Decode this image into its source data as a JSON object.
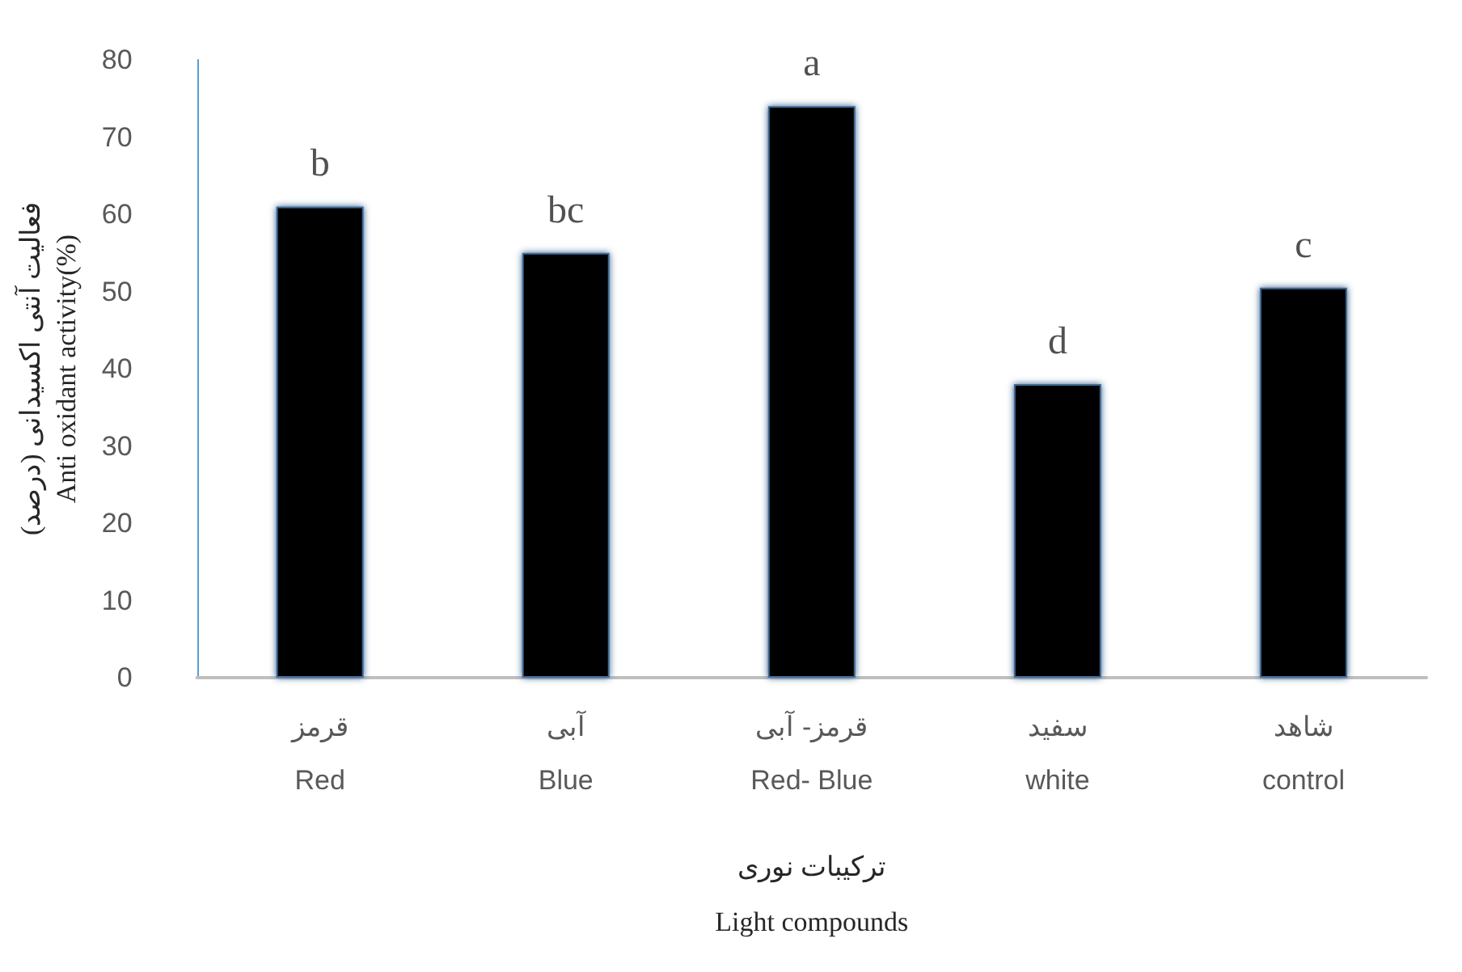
{
  "chart_data": {
    "type": "bar",
    "xlabel": "ترکیبات نوری\nLight compounds",
    "ylabel": "فعالیت آنتی اکسیدانی (درصد)\nAnti oxidant activity(%)",
    "categories": [
      "قرمز\nRed",
      "آبی\nBlue",
      "قرمز- آبی\nRed- Blue",
      "سفید\nwhite",
      "شاهد\ncontrol"
    ],
    "values": [
      61,
      55,
      74,
      38,
      50.5
    ],
    "color": "#000000",
    "ylim": [
      0,
      80
    ],
    "yticks": [
      0,
      10,
      20,
      30,
      40,
      50,
      60,
      70,
      80
    ],
    "grid": false,
    "annotations": [
      {
        "text": "b",
        "x": "قرمز\nRed",
        "y": 61
      },
      {
        "text": "bc",
        "x": "آبی\nBlue",
        "y": 55
      },
      {
        "text": "a",
        "x": "قرمز- آبی\nRed- Blue",
        "y": 74
      },
      {
        "text": "d",
        "x": "سفید\nwhite",
        "y": 38
      },
      {
        "text": "c",
        "x": "شاهد\ncontrol",
        "y": 50.5
      }
    ]
  }
}
